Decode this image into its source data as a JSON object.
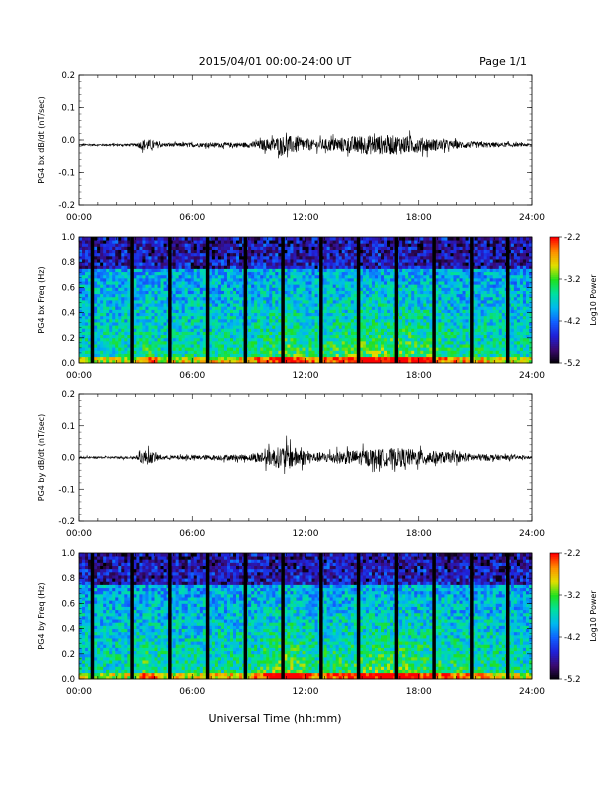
{
  "header": {
    "title": "2015/04/01  00:00-24:00 UT",
    "page": "Page 1/1"
  },
  "footer": {
    "xlabel": "Universal Time (hh:mm)"
  },
  "colors": {
    "trace": "#000000",
    "colormap": [
      "#000000",
      "#3a0a6e",
      "#2020d8",
      "#1060ff",
      "#00b8f0",
      "#00e0a0",
      "#20e020",
      "#e0e000",
      "#ff9000",
      "#ff0000"
    ]
  },
  "chart_data": [
    {
      "type": "line",
      "ylabel": "PG4 bx dB/dt (nT/sec)",
      "xlim": [
        0,
        24
      ],
      "x_tick_labels": [
        "00:00",
        "06:00",
        "12:00",
        "18:00",
        "24:00"
      ],
      "ylim": [
        -0.2,
        0.2
      ],
      "y_tick_labels": [
        "0.2",
        "0.1",
        "0.0",
        "-0.1",
        "-0.2"
      ],
      "baseline": -0.015,
      "activity_profile": [
        {
          "hour": 0,
          "amp": 0.003
        },
        {
          "hour": 3,
          "amp": 0.004
        },
        {
          "hour": 3.5,
          "amp": 0.02
        },
        {
          "hour": 4.5,
          "amp": 0.006
        },
        {
          "hour": 9,
          "amp": 0.008
        },
        {
          "hour": 11,
          "amp": 0.03
        },
        {
          "hour": 12.5,
          "amp": 0.015
        },
        {
          "hour": 15,
          "amp": 0.03
        },
        {
          "hour": 17,
          "amp": 0.03
        },
        {
          "hour": 20,
          "amp": 0.012
        },
        {
          "hour": 24,
          "amp": 0.004
        }
      ]
    },
    {
      "type": "heatmap",
      "ylabel": "PG4 bx Freq (Hz)",
      "xlim": [
        0,
        24
      ],
      "x_tick_labels": [
        "00:00",
        "06:00",
        "12:00",
        "18:00",
        "24:00"
      ],
      "ylim": [
        0.0,
        1.0
      ],
      "y_tick_labels": [
        "1.0",
        "0.8",
        "0.6",
        "0.4",
        "0.2",
        "0.0"
      ],
      "colorbar": {
        "label": "Log10 Power",
        "range": [
          -5.2,
          -2.2
        ],
        "tick_labels": [
          "-2.2",
          "-3.2",
          "-4.2",
          "-5.2"
        ]
      },
      "data_gaps_hours": [
        0.7,
        2.8,
        4.8,
        6.8,
        8.8,
        10.8,
        12.8,
        14.8,
        16.8,
        18.8,
        20.8,
        22.7
      ]
    },
    {
      "type": "line",
      "ylabel": "PG4 by dB/dt (nT/sec)",
      "xlim": [
        0,
        24
      ],
      "x_tick_labels": [
        "00:00",
        "06:00",
        "12:00",
        "18:00",
        "24:00"
      ],
      "ylim": [
        -0.2,
        0.2
      ],
      "y_tick_labels": [
        "0.2",
        "0.1",
        "0.0",
        "-0.1",
        "-0.2"
      ],
      "baseline": 0.0,
      "activity_profile": [
        {
          "hour": 0,
          "amp": 0.003
        },
        {
          "hour": 3,
          "amp": 0.004
        },
        {
          "hour": 3.5,
          "amp": 0.025
        },
        {
          "hour": 4.5,
          "amp": 0.006
        },
        {
          "hour": 9,
          "amp": 0.01
        },
        {
          "hour": 11,
          "amp": 0.04
        },
        {
          "hour": 12.5,
          "amp": 0.015
        },
        {
          "hour": 15,
          "amp": 0.025
        },
        {
          "hour": 17,
          "amp": 0.03
        },
        {
          "hour": 20,
          "amp": 0.015
        },
        {
          "hour": 24,
          "amp": 0.004
        }
      ]
    },
    {
      "type": "heatmap",
      "ylabel": "PG4 by Freq (Hz)",
      "xlim": [
        0,
        24
      ],
      "x_tick_labels": [
        "00:00",
        "06:00",
        "12:00",
        "18:00",
        "24:00"
      ],
      "ylim": [
        0.0,
        1.0
      ],
      "y_tick_labels": [
        "1.0",
        "0.8",
        "0.6",
        "0.4",
        "0.2",
        "0.0"
      ],
      "colorbar": {
        "label": "Log10 Power",
        "range": [
          -5.2,
          -2.2
        ],
        "tick_labels": [
          "-2.2",
          "-3.2",
          "-4.2",
          "-5.2"
        ]
      },
      "data_gaps_hours": [
        0.7,
        2.8,
        4.8,
        6.8,
        8.8,
        10.8,
        12.8,
        14.8,
        16.8,
        18.8,
        20.8,
        22.7
      ]
    }
  ]
}
